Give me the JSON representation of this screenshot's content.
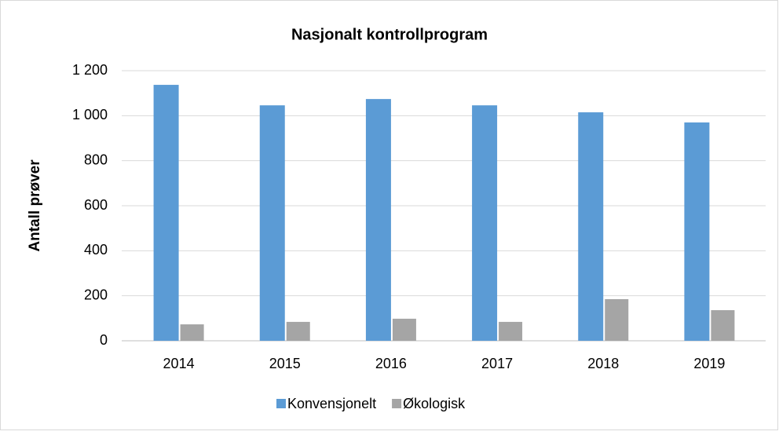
{
  "chart_data": {
    "type": "bar",
    "title": "Nasjonalt kontrollprogram",
    "y_label": "Antall prøver",
    "categories": [
      "2014",
      "2015",
      "2016",
      "2017",
      "2018",
      "2019"
    ],
    "series": [
      {
        "name": "Konvensjonelt",
        "color": "#5b9bd5",
        "values": [
          1137,
          1046,
          1074,
          1046,
          1015,
          970
        ]
      },
      {
        "name": "Økologisk",
        "color": "#a5a5a5",
        "values": [
          73,
          84,
          98,
          84,
          185,
          136
        ]
      }
    ],
    "ylim": [
      0,
      1200
    ],
    "yticks": [
      0,
      200,
      400,
      600,
      800,
      {
        "value": 1000,
        "label": "1 000"
      },
      {
        "value": 1200,
        "label": "1 200"
      }
    ],
    "grid": true,
    "legend": "bottom"
  }
}
